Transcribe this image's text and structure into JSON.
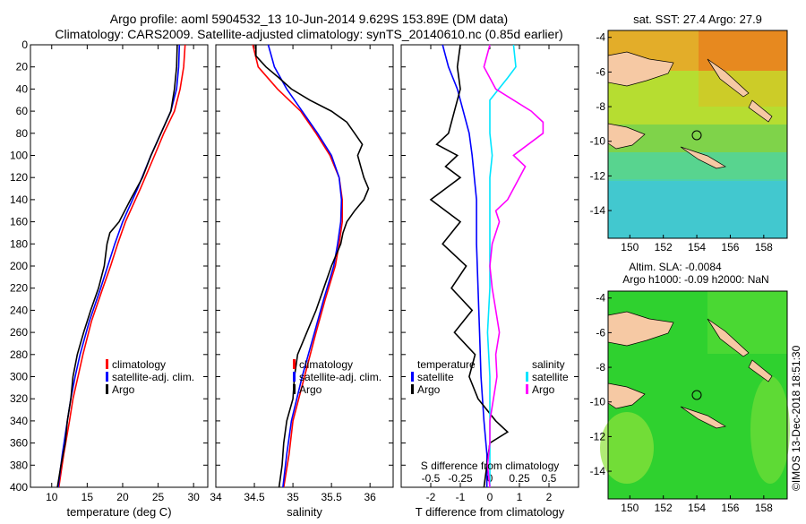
{
  "title": {
    "line1": "Argo profile: aoml 5904532_13 10-Jun-2014 9.629S 153.89E (DM data)",
    "line2": "Climatology: CARS2009. Satellite-adjusted climatology: synTS_20140610.nc (0.85d earlier)"
  },
  "colors": {
    "climatology": "#ff0000",
    "satellite": "#0000ff",
    "argo": "#000000",
    "sat_t": "#00e5ff",
    "sal_s": "#ff00ff"
  },
  "chart_data": [
    {
      "type": "line",
      "id": "temperature",
      "xlabel": "temperature (deg C)",
      "ylabel": "",
      "xlim": [
        7,
        32
      ],
      "ylim": [
        400,
        0
      ],
      "xticks": [
        10,
        15,
        20,
        25,
        30
      ],
      "yticks": [
        0,
        20,
        40,
        60,
        80,
        100,
        120,
        140,
        160,
        180,
        200,
        220,
        240,
        260,
        280,
        300,
        320,
        340,
        360,
        380,
        400
      ],
      "legend": [
        "climatology",
        "satellite-adj. clim.",
        "Argo"
      ],
      "series": [
        {
          "name": "climatology",
          "depth": [
            0,
            20,
            40,
            60,
            80,
            100,
            130,
            160,
            180,
            200,
            220,
            250,
            280,
            300,
            320,
            340,
            370,
            400
          ],
          "values": [
            28.8,
            28.6,
            28.1,
            27.3,
            25.8,
            24.5,
            22.5,
            20.4,
            19.3,
            18.3,
            17.2,
            15.6,
            14.4,
            13.7,
            13.0,
            12.5,
            11.7,
            11.0
          ]
        },
        {
          "name": "satellite-adj. clim.",
          "depth": [
            0,
            20,
            40,
            60,
            80,
            100,
            130,
            160,
            180,
            200,
            220,
            250,
            280,
            300,
            320,
            340,
            370,
            400
          ],
          "values": [
            28.0,
            27.9,
            27.6,
            26.8,
            25.4,
            24.0,
            22.1,
            20.0,
            18.9,
            17.9,
            16.9,
            15.3,
            14.0,
            13.3,
            12.7,
            12.2,
            11.5,
            10.9
          ]
        },
        {
          "name": "Argo",
          "depth": [
            0,
            20,
            40,
            60,
            80,
            100,
            120,
            140,
            160,
            170,
            180,
            200,
            220,
            240,
            260,
            280,
            300,
            320,
            340,
            360,
            380,
            400
          ],
          "values": [
            27.7,
            27.6,
            27.3,
            26.8,
            25.4,
            24.0,
            22.8,
            21.1,
            19.5,
            18.2,
            17.8,
            17.4,
            16.6,
            15.5,
            14.5,
            13.6,
            13.0,
            12.7,
            12.2,
            11.9,
            11.3,
            10.8
          ]
        }
      ]
    },
    {
      "type": "line",
      "id": "salinity",
      "xlabel": "salinity",
      "ylabel": "",
      "xlim": [
        34.0,
        36.3
      ],
      "ylim": [
        400,
        0
      ],
      "xticks": [
        34,
        34.5,
        35,
        35.5,
        36
      ],
      "legend": [
        "climatology",
        "satellite-adj. clim.",
        "Argo"
      ],
      "series": [
        {
          "name": "climatology",
          "depth": [
            0,
            20,
            40,
            60,
            80,
            100,
            120,
            140,
            160,
            180,
            200,
            230,
            260,
            300,
            340,
            370,
            400
          ],
          "values": [
            34.48,
            34.55,
            34.8,
            35.1,
            35.3,
            35.48,
            35.6,
            35.64,
            35.64,
            35.6,
            35.55,
            35.42,
            35.3,
            35.15,
            35.0,
            34.95,
            34.88
          ]
        },
        {
          "name": "satellite-adj. clim.",
          "depth": [
            0,
            10,
            20,
            40,
            60,
            80,
            100,
            120,
            140,
            160,
            180,
            200,
            230,
            260,
            300,
            340,
            370,
            400
          ],
          "values": [
            34.68,
            34.72,
            34.76,
            34.92,
            35.12,
            35.32,
            35.5,
            35.6,
            35.63,
            35.62,
            35.58,
            35.53,
            35.4,
            35.28,
            35.12,
            34.98,
            34.92,
            34.87
          ]
        },
        {
          "name": "Argo",
          "depth": [
            0,
            10,
            20,
            30,
            40,
            50,
            60,
            70,
            80,
            90,
            100,
            110,
            120,
            130,
            140,
            150,
            160,
            170,
            180,
            200,
            220,
            240,
            260,
            280,
            300,
            320,
            340,
            360,
            380,
            400
          ],
          "values": [
            34.52,
            34.52,
            34.65,
            34.82,
            34.98,
            35.22,
            35.5,
            35.7,
            35.8,
            35.9,
            35.84,
            35.88,
            35.92,
            35.98,
            35.92,
            35.8,
            35.7,
            35.65,
            35.62,
            35.5,
            35.4,
            35.3,
            35.18,
            35.06,
            35.02,
            35.0,
            34.92,
            34.88,
            34.86,
            34.82
          ]
        }
      ]
    },
    {
      "type": "line",
      "id": "difference",
      "xlabel": "T difference from climatology",
      "top_label": "S difference from climatology",
      "xlim": [
        -3,
        3
      ],
      "ylim": [
        400,
        0
      ],
      "xticks": [
        -2,
        -1,
        0,
        1,
        2
      ],
      "top_ticks": [
        -0.5,
        -0.25,
        0,
        0.25,
        0.5
      ],
      "top_tick_labels": [
        "-0.5",
        "-0.25",
        "0",
        "0.25",
        "0.5"
      ],
      "legend_titles": [
        "temperature",
        "salinity"
      ],
      "legend": [
        "satellite",
        "Argo",
        "satellite",
        "Argo"
      ],
      "series": [
        {
          "name": "temperature satellite",
          "depth": [
            0,
            20,
            40,
            60,
            80,
            100,
            140,
            180,
            220,
            260,
            300,
            340,
            370,
            400
          ],
          "values": [
            -1.6,
            -1.4,
            -1.1,
            -0.9,
            -0.7,
            -0.6,
            -0.45,
            -0.45,
            -0.4,
            -0.35,
            -0.3,
            -0.2,
            -0.1,
            -0.1
          ]
        },
        {
          "name": "temperature Argo",
          "depth": [
            0,
            20,
            40,
            60,
            80,
            90,
            100,
            110,
            120,
            140,
            160,
            180,
            200,
            220,
            240,
            260,
            280,
            300,
            320,
            340,
            350,
            360,
            380,
            400
          ],
          "values": [
            -1.0,
            -1.1,
            -1.0,
            -1.2,
            -1.4,
            -1.8,
            -1.1,
            -1.5,
            -1.0,
            -2.0,
            -1.0,
            -1.6,
            -0.8,
            -1.3,
            -0.6,
            -1.2,
            -0.5,
            -0.7,
            -0.4,
            0.2,
            0.6,
            0.0,
            -0.1,
            -0.2
          ]
        },
        {
          "name": "salinity satellite",
          "depth": [
            0,
            20,
            30,
            50,
            80,
            100,
            120,
            150,
            180,
            220,
            260,
            300,
            340,
            400
          ],
          "values": [
            0.2,
            0.22,
            0.15,
            0.0,
            0.0,
            0.02,
            0.0,
            0.0,
            0.0,
            0.0,
            -0.02,
            0.0,
            0.0,
            0.0
          ]
        },
        {
          "name": "salinity Argo",
          "depth": [
            0,
            20,
            40,
            60,
            70,
            80,
            100,
            110,
            120,
            140,
            150,
            160,
            180,
            200,
            220,
            240,
            260,
            280,
            300,
            320,
            340,
            360,
            380,
            400
          ],
          "values": [
            0.0,
            -0.05,
            0.05,
            0.35,
            0.45,
            0.45,
            0.2,
            0.3,
            0.25,
            0.15,
            0.05,
            0.08,
            0.02,
            0.0,
            0.02,
            0.05,
            0.08,
            0.05,
            0.06,
            0.03,
            0.0,
            0.0,
            -0.02,
            0.0
          ]
        }
      ]
    }
  ],
  "maps": [
    {
      "title": "sat. SST: 27.4 Argo: 27.9",
      "yticks": [
        -4,
        -6,
        -8,
        -10,
        -12,
        -14
      ],
      "xticks": [
        150,
        152,
        154,
        156,
        158
      ]
    },
    {
      "title_line1": "Altim. SLA: -0.0084",
      "title_line2": "Argo h1000: -0.09 h2000: NaN",
      "yticks": [
        -4,
        -6,
        -8,
        -10,
        -12,
        -14
      ],
      "xticks": [
        150,
        152,
        154,
        156,
        158
      ]
    }
  ],
  "credit": "©IMOS 13-Dec-2018 18:51:30"
}
